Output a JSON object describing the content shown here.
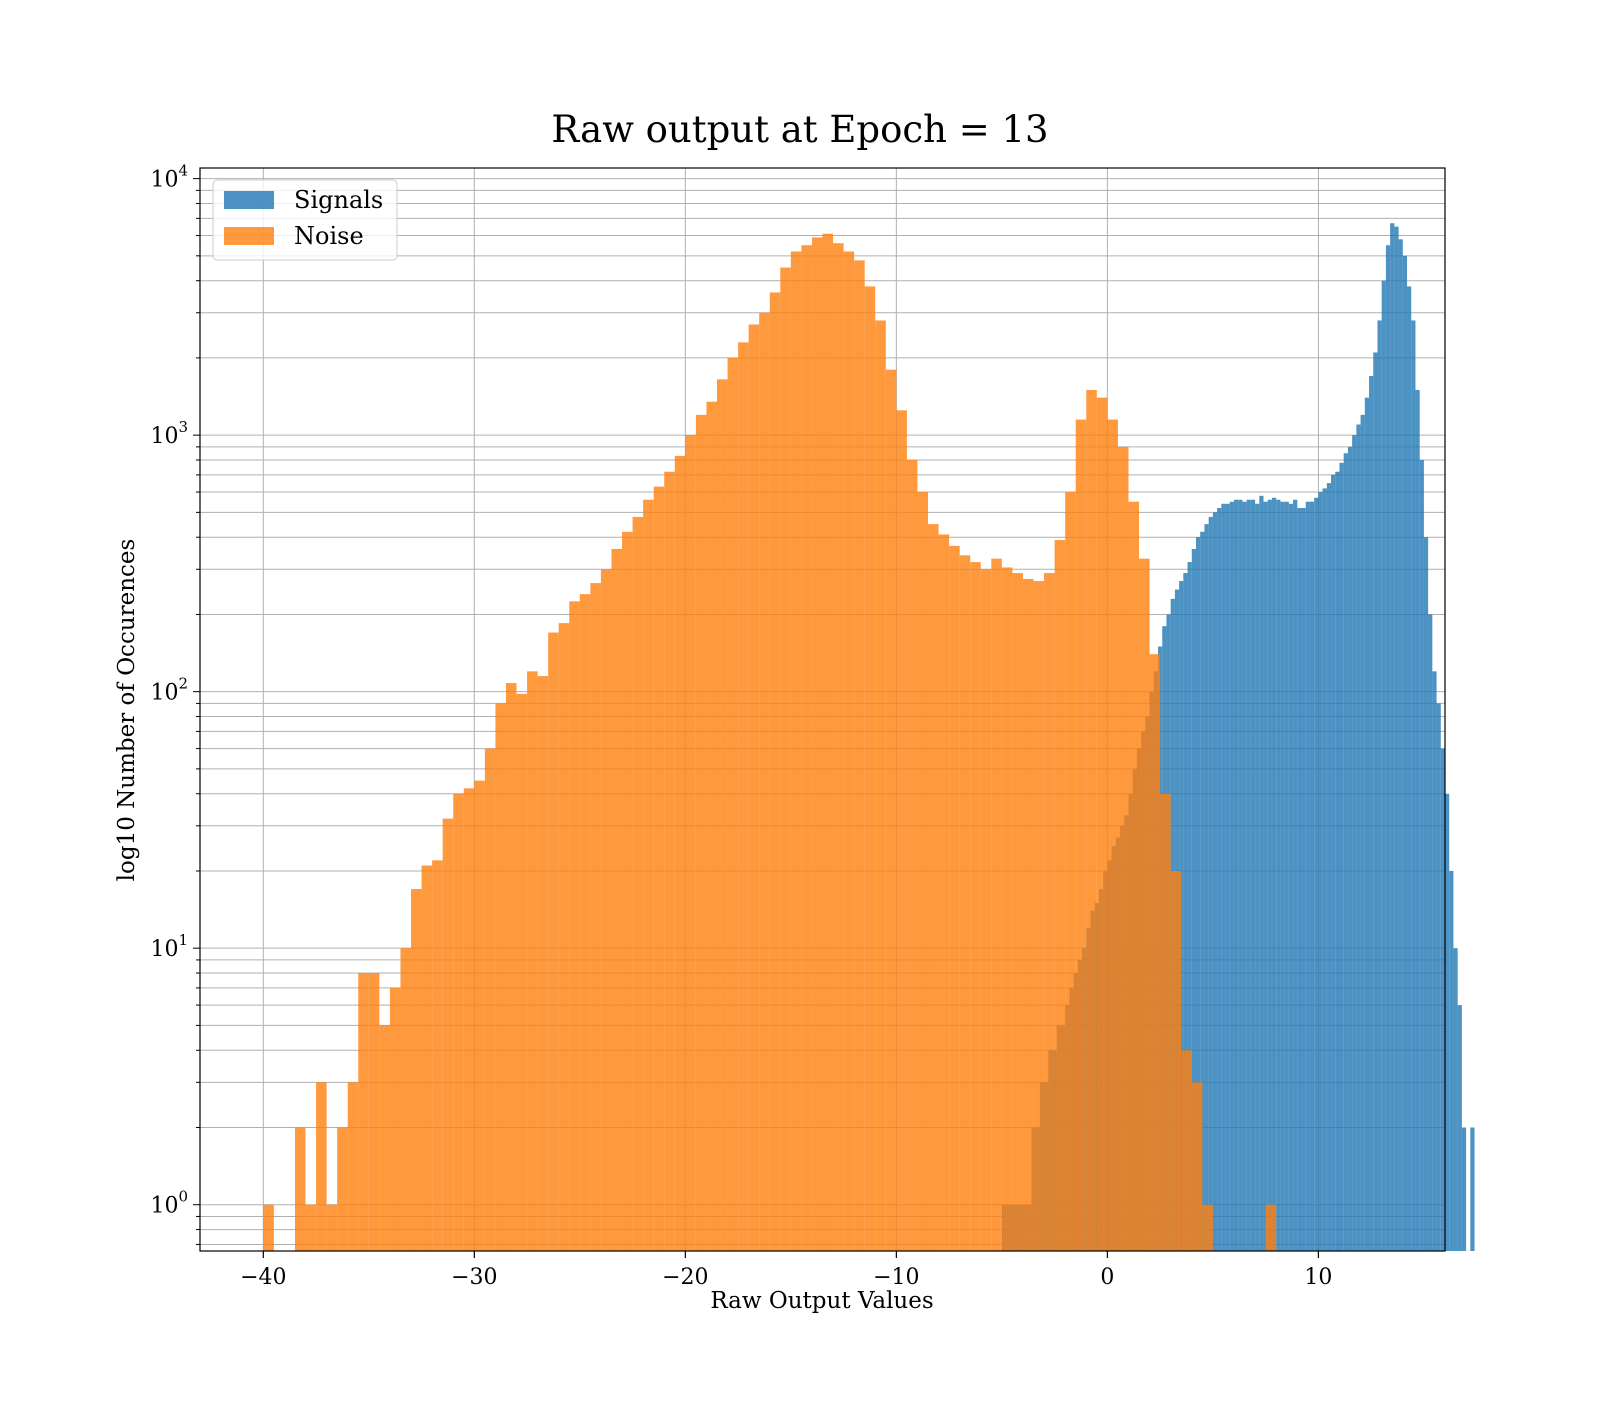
{
  "chart_data": {
    "type": "bar",
    "title": "Raw output at Epoch = 13",
    "xlabel": "Raw Output Values",
    "ylabel": "log10 Number of Occurences",
    "xlim": [
      -43,
      16
    ],
    "ylim": [
      0.66,
      11000
    ],
    "y_scale": "log",
    "grid": true,
    "grid_minor_y": true,
    "legend_position": "top-left",
    "x_ticks": [
      {
        "value": -40,
        "label": "−40"
      },
      {
        "value": -30,
        "label": "−30"
      },
      {
        "value": -20,
        "label": "−20"
      },
      {
        "value": -10,
        "label": "−10"
      },
      {
        "value": 0,
        "label": "0"
      },
      {
        "value": 10,
        "label": "10"
      }
    ],
    "y_ticks": [
      {
        "value": 1,
        "base": "10",
        "exp": "0"
      },
      {
        "value": 10,
        "base": "10",
        "exp": "1"
      },
      {
        "value": 100,
        "base": "10",
        "exp": "2"
      },
      {
        "value": 1000,
        "base": "10",
        "exp": "3"
      },
      {
        "value": 10000,
        "base": "10",
        "exp": "4"
      }
    ],
    "series": [
      {
        "name": "Signals",
        "color": "#1f77b4",
        "opacity": 0.8,
        "bin_start": -5.0,
        "bin_width": 0.2,
        "values": [
          1,
          1,
          1,
          1,
          1,
          1,
          1,
          2,
          2,
          3,
          3,
          4,
          4,
          5,
          5,
          6,
          7,
          8,
          9,
          10,
          12,
          14,
          15,
          17,
          20,
          22,
          25,
          27,
          30,
          33,
          40,
          50,
          60,
          70,
          80,
          100,
          120,
          150,
          180,
          200,
          230,
          250,
          270,
          290,
          320,
          360,
          400,
          420,
          450,
          480,
          500,
          520,
          540,
          540,
          550,
          560,
          560,
          550,
          560,
          560,
          540,
          580,
          550,
          560,
          570,
          560,
          550,
          550,
          540,
          560,
          520,
          520,
          550,
          550,
          570,
          600,
          620,
          650,
          700,
          720,
          780,
          850,
          900,
          1000,
          1100,
          1200,
          1400,
          1700,
          2100,
          2800,
          4000,
          5500,
          6700,
          6500,
          5800,
          5000,
          3800,
          2800,
          1500,
          800,
          400,
          200,
          120,
          90,
          60,
          40,
          20,
          10,
          6,
          2,
          0,
          2
        ]
      },
      {
        "name": "Noise",
        "color": "#ff7f0e",
        "opacity": 0.8,
        "bin_start": -40.0,
        "bin_width": 0.5,
        "values": [
          1,
          0,
          0,
          2,
          1,
          3,
          1,
          2,
          3,
          8,
          8,
          5,
          7,
          10,
          17,
          21,
          22,
          32,
          40,
          42,
          45,
          60,
          90,
          108,
          98,
          120,
          115,
          170,
          185,
          225,
          240,
          265,
          300,
          360,
          420,
          480,
          560,
          630,
          720,
          830,
          1000,
          1200,
          1350,
          1650,
          2000,
          2300,
          2700,
          3000,
          3600,
          4500,
          5200,
          5500,
          5900,
          6100,
          5600,
          5200,
          4800,
          3800,
          2800,
          1800,
          1250,
          800,
          600,
          450,
          410,
          370,
          340,
          320,
          300,
          330,
          305,
          290,
          275,
          270,
          290,
          390,
          600,
          1150,
          1500,
          1400,
          1150,
          900,
          550,
          330,
          140,
          40,
          20,
          4,
          3,
          1,
          0,
          0,
          0,
          0,
          0,
          1
        ]
      }
    ]
  }
}
